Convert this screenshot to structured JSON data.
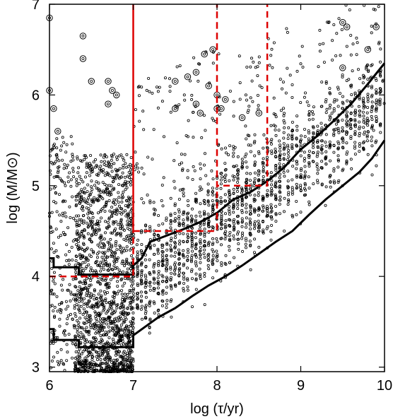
{
  "chart_data": {
    "type": "scatter",
    "title": "",
    "xlabel": "log (τ/yr)",
    "ylabel": "log (M/M⊙)",
    "xlim": [
      6,
      10
    ],
    "ylim": [
      2.95,
      7
    ],
    "xticks": [
      "6",
      "7",
      "8",
      "9",
      "10"
    ],
    "yticks": [
      "3",
      "4",
      "5",
      "6",
      "7"
    ],
    "grid": false,
    "colors": {
      "points": "#000000",
      "limits": "#dd0000",
      "curves": "#000000"
    },
    "series": [
      {
        "style": "solid-black",
        "points": [
          [
            6.0,
            4.2
          ],
          [
            6.05,
            4.2
          ],
          [
            6.05,
            4.1
          ],
          [
            6.35,
            4.1
          ],
          [
            6.35,
            4.02
          ],
          [
            7.0,
            4.02
          ],
          [
            7.0,
            4.12
          ],
          [
            7.1,
            4.2
          ],
          [
            7.2,
            4.38
          ],
          [
            7.4,
            4.45
          ],
          [
            7.6,
            4.52
          ],
          [
            7.8,
            4.6
          ],
          [
            8.0,
            4.7
          ],
          [
            8.2,
            4.85
          ],
          [
            8.4,
            4.93
          ],
          [
            8.6,
            5.05
          ],
          [
            8.8,
            5.2
          ],
          [
            9.0,
            5.4
          ],
          [
            9.2,
            5.55
          ],
          [
            9.4,
            5.72
          ],
          [
            9.6,
            5.9
          ],
          [
            9.8,
            6.12
          ],
          [
            10.0,
            6.35
          ]
        ]
      },
      {
        "style": "solid-black",
        "points": [
          [
            6.0,
            3.42
          ],
          [
            6.05,
            3.42
          ],
          [
            6.05,
            3.3
          ],
          [
            6.35,
            3.3
          ],
          [
            6.35,
            3.22
          ],
          [
            7.0,
            3.22
          ],
          [
            7.0,
            3.35
          ],
          [
            7.15,
            3.45
          ],
          [
            7.3,
            3.55
          ],
          [
            7.5,
            3.65
          ],
          [
            7.7,
            3.78
          ],
          [
            7.9,
            3.9
          ],
          [
            8.1,
            4.0
          ],
          [
            8.3,
            4.12
          ],
          [
            8.5,
            4.25
          ],
          [
            8.7,
            4.38
          ],
          [
            8.9,
            4.5
          ],
          [
            9.1,
            4.68
          ],
          [
            9.3,
            4.85
          ],
          [
            9.5,
            5.0
          ],
          [
            9.7,
            5.15
          ],
          [
            9.85,
            5.3
          ],
          [
            10.0,
            5.5
          ]
        ]
      },
      {
        "style": "dashed-red",
        "points": [
          [
            6.0,
            4.0
          ],
          [
            7.0,
            4.0
          ],
          [
            7.0,
            7.0
          ],
          [
            7.0,
            4.5
          ],
          [
            8.0,
            4.5
          ],
          [
            8.0,
            7.0
          ],
          [
            8.0,
            5.0
          ],
          [
            8.6,
            5.0
          ],
          [
            8.6,
            7.0
          ]
        ]
      }
    ],
    "circled_points": [
      [
        6.0,
        6.85
      ],
      [
        6.4,
        6.65
      ],
      [
        6.4,
        6.4
      ],
      [
        6.5,
        6.15
      ],
      [
        6.7,
        6.15
      ],
      [
        6.75,
        6.05
      ],
      [
        6.8,
        6.0
      ],
      [
        6.7,
        5.9
      ],
      [
        7.5,
        6.15
      ],
      [
        7.65,
        6.2
      ],
      [
        7.75,
        6.25
      ],
      [
        7.9,
        6.1
      ],
      [
        8.0,
        6.0
      ],
      [
        8.1,
        5.95
      ],
      [
        7.85,
        6.45
      ],
      [
        7.95,
        6.5
      ],
      [
        8.0,
        5.85
      ],
      [
        7.8,
        5.8
      ],
      [
        8.3,
        5.75
      ],
      [
        8.5,
        5.8
      ],
      [
        9.5,
        6.8
      ],
      [
        9.55,
        6.75
      ],
      [
        9.9,
        6.75
      ],
      [
        9.8,
        6.5
      ],
      [
        9.5,
        6.3
      ],
      [
        7.75,
        5.9
      ],
      [
        8.05,
        5.85
      ],
      [
        7.5,
        5.85
      ],
      [
        6.05,
        5.85
      ],
      [
        6.1,
        5.6
      ],
      [
        6.0,
        6.05
      ]
    ]
  }
}
